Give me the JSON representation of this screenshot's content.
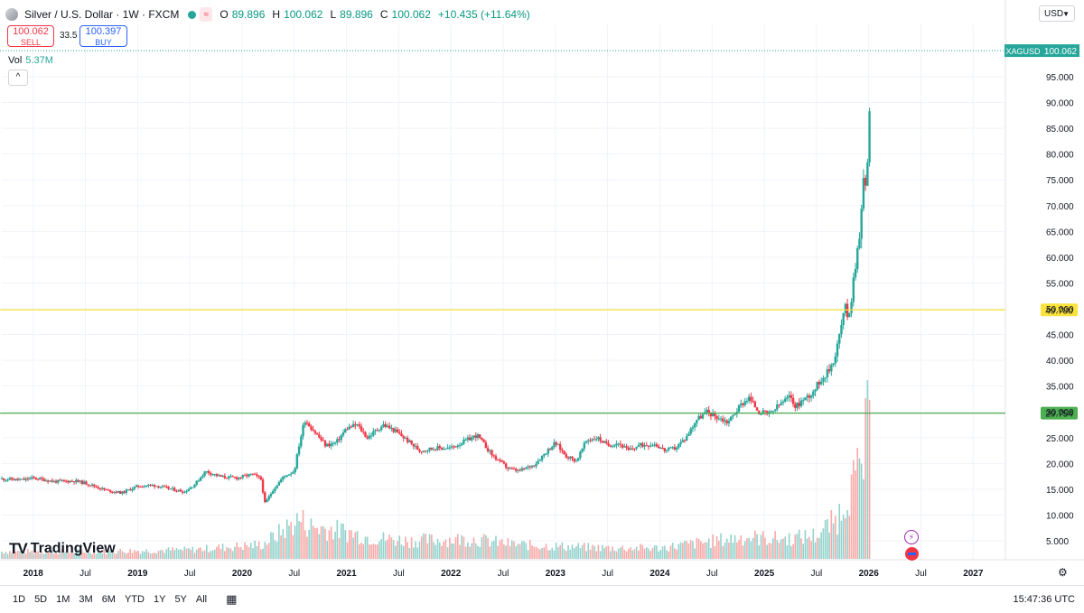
{
  "header": {
    "title": "Silver / U.S. Dollar · 1W · FXCM",
    "o_label": "O",
    "o_value": "89.896",
    "h_label": "H",
    "h_value": "100.062",
    "l_label": "L",
    "l_value": "89.896",
    "c_label": "C",
    "c_value": "100.062",
    "change": "+10.435 (+11.64%)"
  },
  "trade": {
    "sell_price": "100.062",
    "sell_label": "SELL",
    "spread": "33.5",
    "buy_price": "100.397",
    "buy_label": "BUY"
  },
  "volume": {
    "label": "Vol",
    "value": "5.37M"
  },
  "currency": "USD",
  "logo_text": "TradingView",
  "timeframes": [
    "1D",
    "5D",
    "1M",
    "3M",
    "6M",
    "YTD",
    "1Y",
    "5Y",
    "All"
  ],
  "clock": "15:47:36 UTC",
  "colors": {
    "up": "#26a69a",
    "down": "#f23645",
    "level_high": "#fbe33b",
    "level_low": "#4caf50",
    "last": "#26a69a"
  },
  "chart_data": {
    "type": "candlestick",
    "symbol_label": "XAGUSD",
    "last_price": "100.062",
    "y_ticks": [
      "5.000",
      "10.000",
      "15.000",
      "20.000",
      "25.000",
      "30.000",
      "35.000",
      "40.000",
      "45.000",
      "50.000",
      "55.000",
      "60.000",
      "65.000",
      "70.000",
      "75.000",
      "80.000",
      "85.000",
      "90.000",
      "95.000"
    ],
    "ylim": [
      0,
      105
    ],
    "x_ticks": [
      {
        "label": "2018",
        "t": 2018.0
      },
      {
        "label": "Jul",
        "t": 2018.5
      },
      {
        "label": "2019",
        "t": 2019.0
      },
      {
        "label": "Jul",
        "t": 2019.5
      },
      {
        "label": "2020",
        "t": 2020.0
      },
      {
        "label": "Jul",
        "t": 2020.5
      },
      {
        "label": "2021",
        "t": 2021.0
      },
      {
        "label": "Jul",
        "t": 2021.5
      },
      {
        "label": "2022",
        "t": 2022.0
      },
      {
        "label": "Jul",
        "t": 2022.5
      },
      {
        "label": "2023",
        "t": 2023.0
      },
      {
        "label": "Jul",
        "t": 2023.5
      },
      {
        "label": "2024",
        "t": 2024.0
      },
      {
        "label": "Jul",
        "t": 2024.5
      },
      {
        "label": "2025",
        "t": 2025.0
      },
      {
        "label": "Jul",
        "t": 2025.5
      },
      {
        "label": "2026",
        "t": 2026.0
      },
      {
        "label": "Jul",
        "t": 2026.5
      },
      {
        "label": "2027",
        "t": 2027.0
      }
    ],
    "xlim": [
      2017.7,
      2027.3
    ],
    "levels": [
      {
        "value": 49.78,
        "label": "49.780",
        "color": "#fbe33b"
      },
      {
        "value": 29.754,
        "label": "29.754",
        "color": "#4caf50"
      }
    ],
    "price_path": [
      [
        2017.7,
        17.0
      ],
      [
        2017.9,
        16.8
      ],
      [
        2018.0,
        17.2
      ],
      [
        2018.2,
        16.5
      ],
      [
        2018.4,
        16.6
      ],
      [
        2018.5,
        16.2
      ],
      [
        2018.7,
        14.8
      ],
      [
        2018.85,
        14.3
      ],
      [
        2019.0,
        15.6
      ],
      [
        2019.15,
        15.8
      ],
      [
        2019.35,
        14.9
      ],
      [
        2019.45,
        14.5
      ],
      [
        2019.55,
        16.0
      ],
      [
        2019.65,
        18.5
      ],
      [
        2019.8,
        17.4
      ],
      [
        2019.95,
        17.2
      ],
      [
        2020.1,
        17.9
      ],
      [
        2020.18,
        17.0
      ],
      [
        2020.22,
        12.2
      ],
      [
        2020.3,
        15.0
      ],
      [
        2020.4,
        17.5
      ],
      [
        2020.5,
        18.5
      ],
      [
        2020.55,
        24.0
      ],
      [
        2020.6,
        28.5
      ],
      [
        2020.7,
        26.0
      ],
      [
        2020.8,
        23.5
      ],
      [
        2020.9,
        24.0
      ],
      [
        2021.0,
        26.8
      ],
      [
        2021.1,
        27.5
      ],
      [
        2021.2,
        25.0
      ],
      [
        2021.35,
        27.5
      ],
      [
        2021.45,
        26.5
      ],
      [
        2021.55,
        25.0
      ],
      [
        2021.7,
        22.5
      ],
      [
        2021.85,
        23.0
      ],
      [
        2022.0,
        23.0
      ],
      [
        2022.15,
        24.5
      ],
      [
        2022.25,
        25.5
      ],
      [
        2022.4,
        21.5
      ],
      [
        2022.55,
        19.0
      ],
      [
        2022.65,
        18.5
      ],
      [
        2022.8,
        19.8
      ],
      [
        2022.9,
        22.0
      ],
      [
        2023.0,
        24.0
      ],
      [
        2023.1,
        21.5
      ],
      [
        2023.2,
        20.5
      ],
      [
        2023.3,
        24.5
      ],
      [
        2023.4,
        25.0
      ],
      [
        2023.5,
        23.5
      ],
      [
        2023.6,
        24.0
      ],
      [
        2023.7,
        22.5
      ],
      [
        2023.8,
        23.5
      ],
      [
        2023.95,
        23.8
      ],
      [
        2024.05,
        22.5
      ],
      [
        2024.15,
        23.0
      ],
      [
        2024.25,
        25.0
      ],
      [
        2024.35,
        28.5
      ],
      [
        2024.45,
        30.0
      ],
      [
        2024.55,
        29.0
      ],
      [
        2024.65,
        28.0
      ],
      [
        2024.78,
        31.5
      ],
      [
        2024.85,
        32.8
      ],
      [
        2024.95,
        30.0
      ],
      [
        2025.05,
        29.5
      ],
      [
        2025.15,
        31.5
      ],
      [
        2025.25,
        33.0
      ],
      [
        2025.3,
        31.0
      ],
      [
        2025.38,
        32.5
      ],
      [
        2025.45,
        33.5
      ],
      [
        2025.55,
        36.5
      ],
      [
        2025.62,
        38.0
      ],
      [
        2025.68,
        41.0
      ],
      [
        2025.72,
        45.0
      ],
      [
        2025.75,
        48.0
      ],
      [
        2025.78,
        50.5
      ],
      [
        2025.8,
        48.5
      ],
      [
        2025.83,
        51.0
      ],
      [
        2025.86,
        57.0
      ],
      [
        2025.89,
        61.0
      ],
      [
        2025.92,
        66.0
      ],
      [
        2025.94,
        72.0
      ],
      [
        2025.96,
        78.0
      ],
      [
        2025.97,
        73.0
      ],
      [
        2025.99,
        80.0
      ],
      [
        2026.01,
        89.9
      ],
      [
        2026.02,
        100.06
      ]
    ],
    "volume_path": [
      [
        2017.7,
        0.4
      ],
      [
        2018.5,
        0.4
      ],
      [
        2019.5,
        0.5
      ],
      [
        2020.2,
        0.8
      ],
      [
        2020.55,
        2.2
      ],
      [
        2020.65,
        1.8
      ],
      [
        2021.0,
        1.5
      ],
      [
        2021.2,
        1.2
      ],
      [
        2021.6,
        1.0
      ],
      [
        2022.2,
        1.1
      ],
      [
        2022.6,
        0.8
      ],
      [
        2023.0,
        0.7
      ],
      [
        2023.5,
        0.6
      ],
      [
        2024.0,
        0.6
      ],
      [
        2024.4,
        0.9
      ],
      [
        2024.8,
        1.2
      ],
      [
        2025.2,
        1.1
      ],
      [
        2025.5,
        1.3
      ],
      [
        2025.7,
        2.2
      ],
      [
        2025.8,
        3.8
      ],
      [
        2025.9,
        4.5
      ],
      [
        2025.95,
        5.5
      ],
      [
        2026.0,
        7.8
      ],
      [
        2026.02,
        5.4
      ]
    ]
  }
}
